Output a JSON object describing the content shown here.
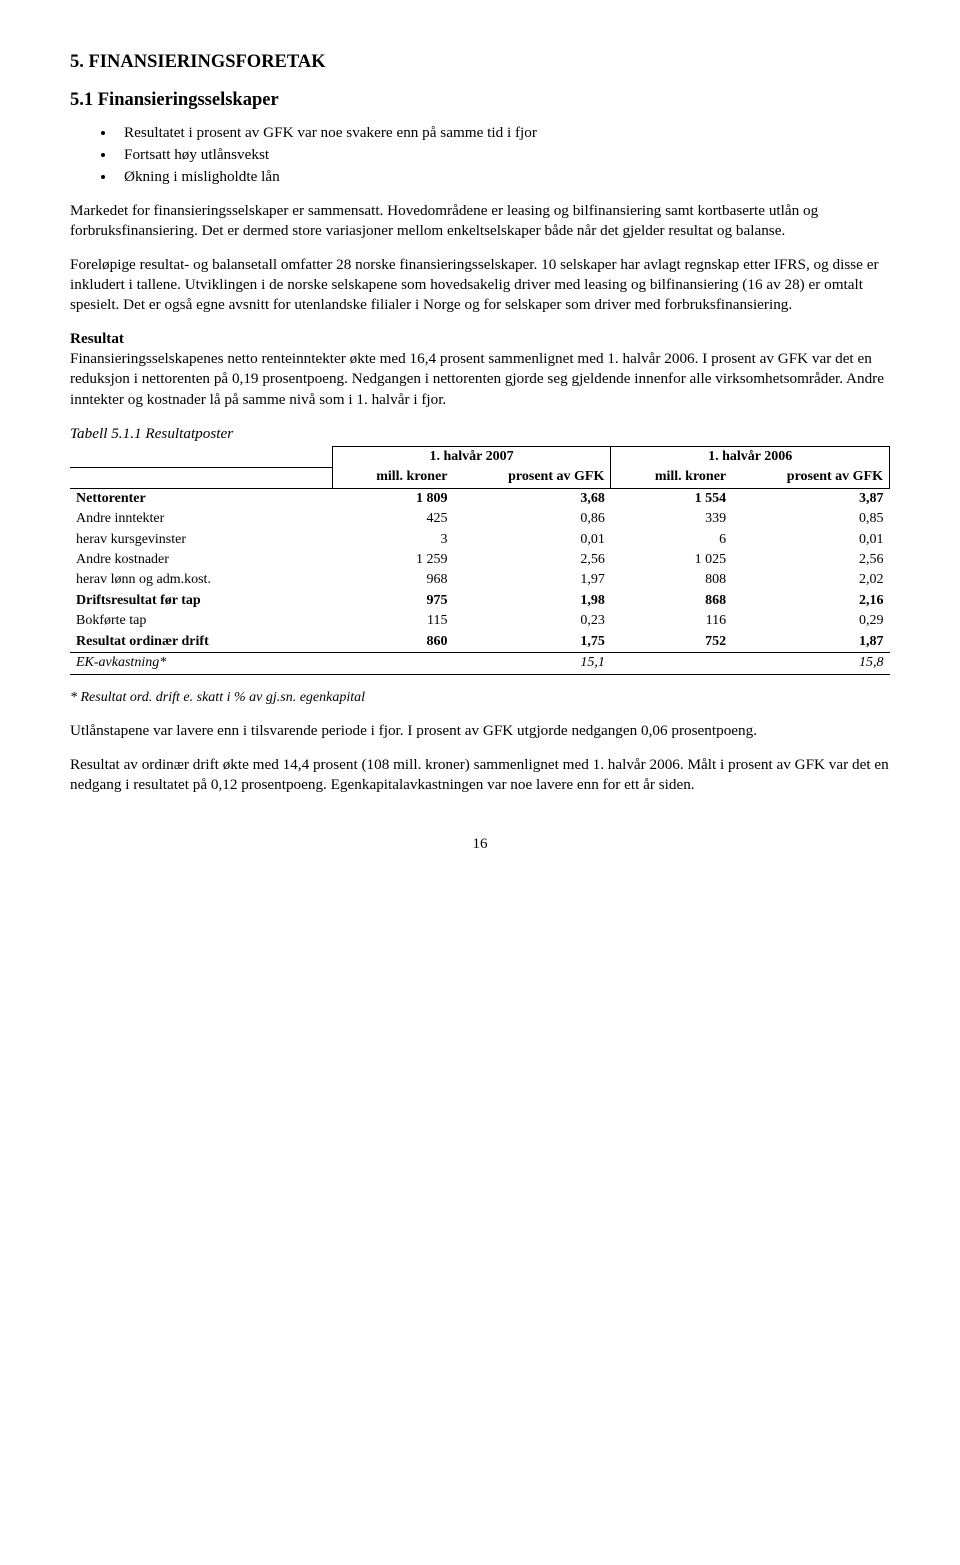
{
  "section": {
    "number_title": "5.    FINANSIERINGSFORETAK",
    "subsection_title": "5.1    Finansieringsselskaper"
  },
  "bullets": [
    "Resultatet i prosent av GFK var noe svakere enn på samme tid i fjor",
    "Fortsatt høy utlånsvekst",
    "Økning i misligholdte lån"
  ],
  "para1": "Markedet for finansieringsselskaper er sammensatt. Hovedområdene er leasing og bilfinansiering samt kortbaserte utlån og forbruksfinansiering. Det er dermed store variasjoner mellom enkeltselskaper både når det gjelder resultat og balanse.",
  "para2": "Foreløpige resultat- og balansetall omfatter 28 norske finansieringsselskaper. 10 selskaper har avlagt regnskap etter IFRS, og disse er inkludert i tallene. Utviklingen i de norske selskapene som hovedsakelig driver med leasing og bilfinansiering (16 av 28) er omtalt spesielt. Det er også egne avsnitt for utenlandske filialer i Norge og for selskaper som driver med forbruksfinansiering.",
  "result_heading": "Resultat",
  "para3": "Finansieringsselskapenes netto renteinntekter økte med 16,4 prosent sammenlignet med 1. halvår 2006. I prosent av GFK var det en reduksjon i nettorenten på 0,19 prosentpoeng. Nedgangen i nettorenten gjorde seg gjeldende innenfor alle virksomhetsområder. Andre inntekter og kostnader lå på samme nivå som i 1. halvår i fjor.",
  "table": {
    "caption": "Tabell 5.1.1    Resultatposter",
    "header_group_1": "1. halvår 2007",
    "header_group_2": "1. halvår 2006",
    "sub_mill": "mill. kroner",
    "sub_pct": "prosent av GFK",
    "rows": [
      {
        "label": "Nettorenter",
        "a": "1 809",
        "b": "3,68",
        "c": "1 554",
        "d": "3,87",
        "bold": true
      },
      {
        "label": "Andre inntekter",
        "a": "425",
        "b": "0,86",
        "c": "339",
        "d": "0,85"
      },
      {
        "label": "herav kursgevinster",
        "a": "3",
        "b": "0,01",
        "c": "6",
        "d": "0,01",
        "indent": true
      },
      {
        "label": "Andre kostnader",
        "a": "1 259",
        "b": "2,56",
        "c": "1 025",
        "d": "2,56"
      },
      {
        "label": "herav lønn og adm.kost.",
        "a": "968",
        "b": "1,97",
        "c": "808",
        "d": "2,02",
        "indent": true
      },
      {
        "label": "Driftsresultat før tap",
        "a": "975",
        "b": "1,98",
        "c": "868",
        "d": "2,16",
        "bold": true
      },
      {
        "label": "Bokførte tap",
        "a": "115",
        "b": "0,23",
        "c": "116",
        "d": "0,29"
      },
      {
        "label": "Resultat ordinær drift",
        "a": "860",
        "b": "1,75",
        "c": "752",
        "d": "1,87",
        "bold": true
      },
      {
        "label": "EK-avkastning*",
        "a": "",
        "b": "15,1",
        "c": "",
        "d": "15,8",
        "italic": true,
        "toprule": true,
        "bottomrule": true
      }
    ],
    "footnote": "* Resultat ord. drift e. skatt i % av gj.sn. egenkapital"
  },
  "para4": "Utlånstapene var lavere enn i tilsvarende periode i fjor. I prosent av GFK utgjorde nedgangen 0,06 prosentpoeng.",
  "para5": "Resultat av ordinær drift økte med 14,4 prosent (108 mill. kroner) sammenlignet med 1. halvår 2006. Målt i prosent av GFK var det en nedgang i resultatet på 0,12 prosentpoeng. Egenkapitalavkastningen var noe lavere enn for ett år siden.",
  "page_number": "16"
}
